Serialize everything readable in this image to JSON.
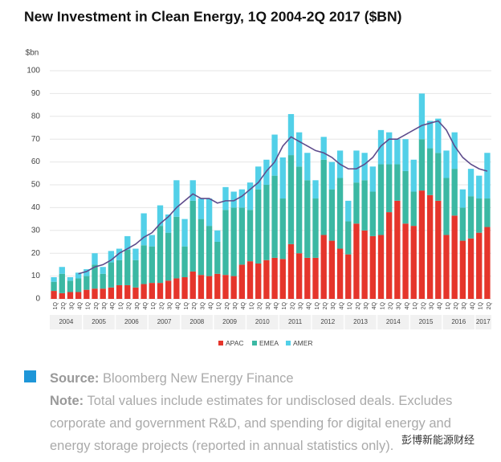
{
  "chart_data": {
    "type": "stacked-bar-line",
    "title": "New Investment in Clean Energy, 1Q 2004-2Q 2017 ($BN)",
    "y_unit": "$bn",
    "categories": [
      "1Q",
      "2Q",
      "3Q",
      "4Q",
      "1Q",
      "2Q",
      "3Q",
      "4Q",
      "1Q",
      "2Q",
      "3Q",
      "4Q",
      "1Q",
      "2Q",
      "3Q",
      "4Q",
      "1Q",
      "2Q",
      "3Q",
      "4Q",
      "1Q",
      "2Q",
      "3Q",
      "4Q",
      "1Q",
      "2Q",
      "3Q",
      "4Q",
      "1Q",
      "2Q",
      "3Q",
      "4Q",
      "1Q",
      "2Q",
      "3Q",
      "4Q",
      "1Q",
      "2Q",
      "3Q",
      "4Q",
      "1Q",
      "2Q",
      "3Q",
      "4Q",
      "1Q",
      "2Q",
      "3Q",
      "4Q",
      "1Q",
      "2Q",
      "3Q",
      "4Q",
      "1Q",
      "2Q"
    ],
    "year_labels": [
      "2004",
      "2005",
      "2006",
      "2007",
      "2008",
      "2009",
      "2010",
      "2011",
      "2012",
      "2013",
      "2014",
      "2015",
      "2016",
      "2017"
    ],
    "series": [
      {
        "name": "APAC",
        "color": "#e5352b",
        "values": [
          3.5,
          2.5,
          3,
          3,
          4,
          4.5,
          4.5,
          5,
          6,
          6,
          5,
          6.5,
          7,
          7,
          8,
          9,
          9.5,
          12,
          10.5,
          10,
          11,
          10.5,
          10,
          15,
          16.5,
          15.5,
          17,
          18,
          17.5,
          24,
          20,
          18,
          18,
          28,
          25.5,
          22,
          19.5,
          33,
          30,
          27.5,
          28,
          38,
          43,
          33,
          32,
          47.5,
          45.5,
          43,
          28,
          36.5,
          25.5,
          26.5,
          29,
          31.5
        ]
      },
      {
        "name": "EMEA",
        "color": "#3bb8a3",
        "values": [
          4,
          8.5,
          5,
          6,
          6,
          10.5,
          6.5,
          11,
          11,
          15.5,
          12,
          17,
          16,
          25,
          21,
          27,
          13.5,
          31,
          24.5,
          22,
          14,
          28.5,
          30,
          25,
          22.5,
          32.5,
          33,
          36,
          26.5,
          39,
          38,
          34,
          26,
          33,
          22.5,
          31,
          14.5,
          18,
          22,
          19.5,
          31,
          21,
          16,
          23,
          15,
          22.5,
          20.5,
          21,
          25,
          20.5,
          14.5,
          18.5,
          15,
          12.5
        ]
      },
      {
        "name": "AMER",
        "color": "#52d0e8",
        "values": [
          2,
          3,
          1.5,
          2.5,
          3,
          5,
          3,
          5,
          5,
          6,
          5,
          14,
          5,
          9,
          8,
          16,
          12,
          9,
          9,
          12,
          5,
          10,
          7,
          8,
          12,
          10,
          11,
          18,
          18,
          18,
          15,
          12,
          8,
          10,
          12,
          12,
          9,
          14,
          12,
          11,
          15,
          14,
          11,
          14,
          14,
          20,
          12,
          15,
          12,
          16,
          8,
          12,
          10,
          20
        ]
      }
    ],
    "line": {
      "color": "#5e4c8c",
      "values": [
        null,
        null,
        null,
        11,
        12,
        14,
        15,
        17,
        20,
        22,
        24,
        27,
        29,
        33,
        36,
        40,
        43,
        46,
        44,
        44,
        42,
        43,
        43,
        45,
        48,
        51,
        56,
        60,
        67,
        71,
        69,
        67,
        65,
        64,
        62,
        59,
        57,
        57,
        59,
        62,
        67,
        70,
        70,
        72,
        74,
        76,
        77,
        78,
        74,
        67,
        62,
        59,
        57,
        56
      ]
    },
    "ylim": [
      0,
      100
    ],
    "yticks": [
      0,
      10,
      20,
      30,
      40,
      50,
      60,
      70,
      80,
      90,
      100
    ],
    "grid": true,
    "legend": "bottom"
  },
  "footer": {
    "source_label": "Source:",
    "source": "Bloomberg New Energy Finance",
    "note_label": "Note:",
    "note": "Total values include estimates for undisclosed deals. Excludes corporate and government R&D, and spending for digital energy and energy storage projects (reported in annual statistics only).",
    "watermark": "彭博新能源财经"
  }
}
